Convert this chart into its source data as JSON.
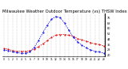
{
  "title": "Milwaukee Weather Outdoor Temperature (vs) THSW Index per Hour (Last 24 Hours)",
  "hours": [
    0,
    1,
    2,
    3,
    4,
    5,
    6,
    7,
    8,
    9,
    10,
    11,
    12,
    13,
    14,
    15,
    16,
    17,
    18,
    19,
    20,
    21,
    22,
    23
  ],
  "temp": [
    30,
    29,
    27,
    26,
    26,
    26,
    27,
    29,
    33,
    37,
    42,
    47,
    50,
    51,
    51,
    50,
    48,
    45,
    43,
    41,
    39,
    37,
    36,
    34
  ],
  "thsw": [
    28,
    27,
    25,
    24,
    23,
    23,
    25,
    32,
    42,
    54,
    65,
    74,
    78,
    76,
    68,
    57,
    47,
    40,
    35,
    31,
    28,
    26,
    25,
    23
  ],
  "temp_color": "#dd0000",
  "thsw_color": "#0000ee",
  "bg_color": "#ffffff",
  "grid_color": "#999999",
  "ylim_min": 18,
  "ylim_max": 82,
  "ytick_values": [
    20,
    28,
    36,
    44,
    52,
    60,
    68,
    76
  ],
  "ytick_labels": [
    "20",
    "28",
    "36",
    "44",
    "52",
    "60",
    "68",
    "76"
  ],
  "title_fontsize": 3.8,
  "line_width": 0.55,
  "marker_size": 1.0
}
